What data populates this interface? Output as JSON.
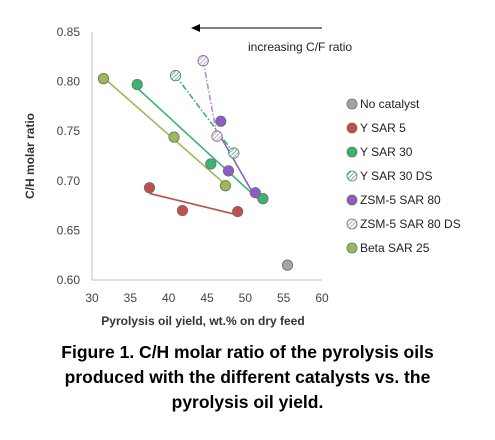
{
  "chart_data": {
    "type": "scatter",
    "title": "",
    "xlabel": "Pyrolysis oil yield, wt.% on dry feed",
    "ylabel": "C/H molar ratio",
    "xlim": [
      30,
      60
    ],
    "ylim": [
      0.6,
      0.85
    ],
    "x_ticks": [
      "30",
      "35",
      "40",
      "45",
      "50",
      "55",
      "60"
    ],
    "y_ticks": [
      "0.60",
      "0.65",
      "0.70",
      "0.75",
      "0.80",
      "0.85"
    ],
    "grid": false,
    "legend_position": "right",
    "annotation": {
      "text": "increasing C/F ratio",
      "direction": "left"
    },
    "series": [
      {
        "name": "No catalyst",
        "color": "#a6a6a6",
        "fill": "solid",
        "trendline": false,
        "points": [
          [
            55.5,
            0.615
          ]
        ]
      },
      {
        "name": "Y SAR 5",
        "color": "#c0504d",
        "fill": "solid",
        "trendline": true,
        "points": [
          [
            37.5,
            0.693
          ],
          [
            41.8,
            0.67
          ],
          [
            49.0,
            0.669
          ]
        ]
      },
      {
        "name": "Y SAR 30",
        "color": "#3cb371",
        "fill": "solid",
        "trendline": true,
        "points": [
          [
            35.9,
            0.797
          ],
          [
            45.5,
            0.717
          ],
          [
            52.3,
            0.682
          ]
        ]
      },
      {
        "name": "Y SAR 30 DS",
        "color": "#3cb371",
        "fill": "hatched",
        "trendline": true,
        "points": [
          [
            40.9,
            0.806
          ],
          [
            48.5,
            0.728
          ]
        ]
      },
      {
        "name": "ZSM-5 SAR 80",
        "color": "#8e5cc9",
        "fill": "solid",
        "trendline": true,
        "points": [
          [
            46.8,
            0.76
          ],
          [
            47.8,
            0.71
          ],
          [
            51.3,
            0.688
          ]
        ]
      },
      {
        "name": "ZSM-5 SAR 80 DS",
        "color": "#b98be0",
        "fill": "hatched",
        "trendline": true,
        "points": [
          [
            44.5,
            0.821
          ],
          [
            46.3,
            0.745
          ]
        ]
      },
      {
        "name": "Beta SAR 25",
        "color": "#9bbb59",
        "fill": "solid",
        "trendline": true,
        "points": [
          [
            31.5,
            0.803
          ],
          [
            40.7,
            0.744
          ],
          [
            47.4,
            0.695
          ]
        ]
      }
    ]
  },
  "caption": {
    "line1": "Figure 1. C/H molar ratio of the pyrolysis oils",
    "line2": "produced with the different catalysts vs. the",
    "line3": "pyrolysis oil yield."
  }
}
